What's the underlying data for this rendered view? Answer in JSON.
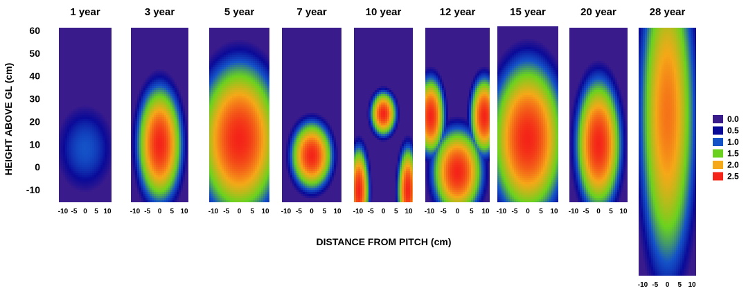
{
  "chart_data": {
    "type": "heatmap",
    "xlabel": "DISTANCE FROM PITCH (cm)",
    "ylabel": "HEIGHT ABOVE GL (cm)",
    "ylim": [
      -15,
      60
    ],
    "yticks": [
      "60",
      "50",
      "40",
      "30",
      "20",
      "10",
      "0",
      "-10"
    ],
    "legend": {
      "placement": "right",
      "entries": [
        {
          "label": "0.0",
          "color": "#3a1b8c"
        },
        {
          "label": "0.5",
          "color": "#0a0a98"
        },
        {
          "label": "1.0",
          "color": "#1452c8"
        },
        {
          "label": "1.5",
          "color": "#6ad21e"
        },
        {
          "label": "2.0",
          "color": "#f5a818"
        },
        {
          "label": "2.5",
          "color": "#f42418"
        }
      ]
    },
    "panels": [
      {
        "title": "1 year",
        "xticks": [
          "-10",
          "-5",
          "0",
          "5",
          "10"
        ],
        "features": [
          {
            "x": 0,
            "y": 8,
            "rx": 10,
            "ry": 14,
            "peak": 1.0
          }
        ]
      },
      {
        "title": "3 year",
        "xticks": [
          "-10",
          "-5",
          "0",
          "5",
          "10"
        ],
        "features": [
          {
            "x": 0,
            "y": 10,
            "rx": 9,
            "ry": 24,
            "peak": 2.5
          }
        ]
      },
      {
        "title": "5 year",
        "xticks": [
          "-10",
          "-5",
          "0",
          "5",
          "10"
        ],
        "features": [
          {
            "x": 0,
            "y": 12,
            "rx": 16,
            "ry": 32,
            "peak": 2.5
          }
        ]
      },
      {
        "title": "7 year",
        "xticks": [
          "-10",
          "-5",
          "0",
          "5",
          "10"
        ],
        "features": [
          {
            "x": 0,
            "y": 5,
            "rx": 8,
            "ry": 14,
            "peak": 2.5
          }
        ]
      },
      {
        "title": "10 year",
        "xticks": [
          "-10",
          "-5",
          "0",
          "5",
          "10"
        ],
        "features": [
          {
            "x": 0,
            "y": 23,
            "rx": 5,
            "ry": 9,
            "peak": 2.5
          },
          {
            "x": -10,
            "y": -10,
            "rx": 4,
            "ry": 18,
            "peak": 2.5
          },
          {
            "x": 10,
            "y": -10,
            "rx": 4,
            "ry": 18,
            "peak": 2.5
          }
        ]
      },
      {
        "title": "12 year",
        "xticks": [
          "-10",
          "-5",
          "0",
          "5",
          "10"
        ],
        "features": [
          {
            "x": 0,
            "y": -2,
            "rx": 9,
            "ry": 18,
            "peak": 2.5
          },
          {
            "x": -10,
            "y": 22,
            "rx": 5,
            "ry": 16,
            "peak": 2.5
          },
          {
            "x": 10,
            "y": 22,
            "rx": 5,
            "ry": 16,
            "peak": 2.5
          }
        ]
      },
      {
        "title": "15 year",
        "xticks": [
          "-10",
          "-5",
          "0",
          "5",
          "10"
        ],
        "features": [
          {
            "x": 0,
            "y": 12,
            "rx": 14,
            "ry": 32,
            "peak": 2.5
          }
        ]
      },
      {
        "title": "20 year",
        "xticks": [
          "-10",
          "-5",
          "0",
          "5",
          "10"
        ],
        "features": [
          {
            "x": 0,
            "y": 10,
            "rx": 9,
            "ry": 27,
            "peak": 2.5
          }
        ]
      },
      {
        "title": "28 year",
        "xticks": [
          "-10",
          "-5",
          "0",
          "5",
          "10"
        ],
        "features": [
          {
            "x": 0,
            "y": 25,
            "rx": 11,
            "ry": 60,
            "peak": 2.2
          }
        ]
      }
    ]
  }
}
